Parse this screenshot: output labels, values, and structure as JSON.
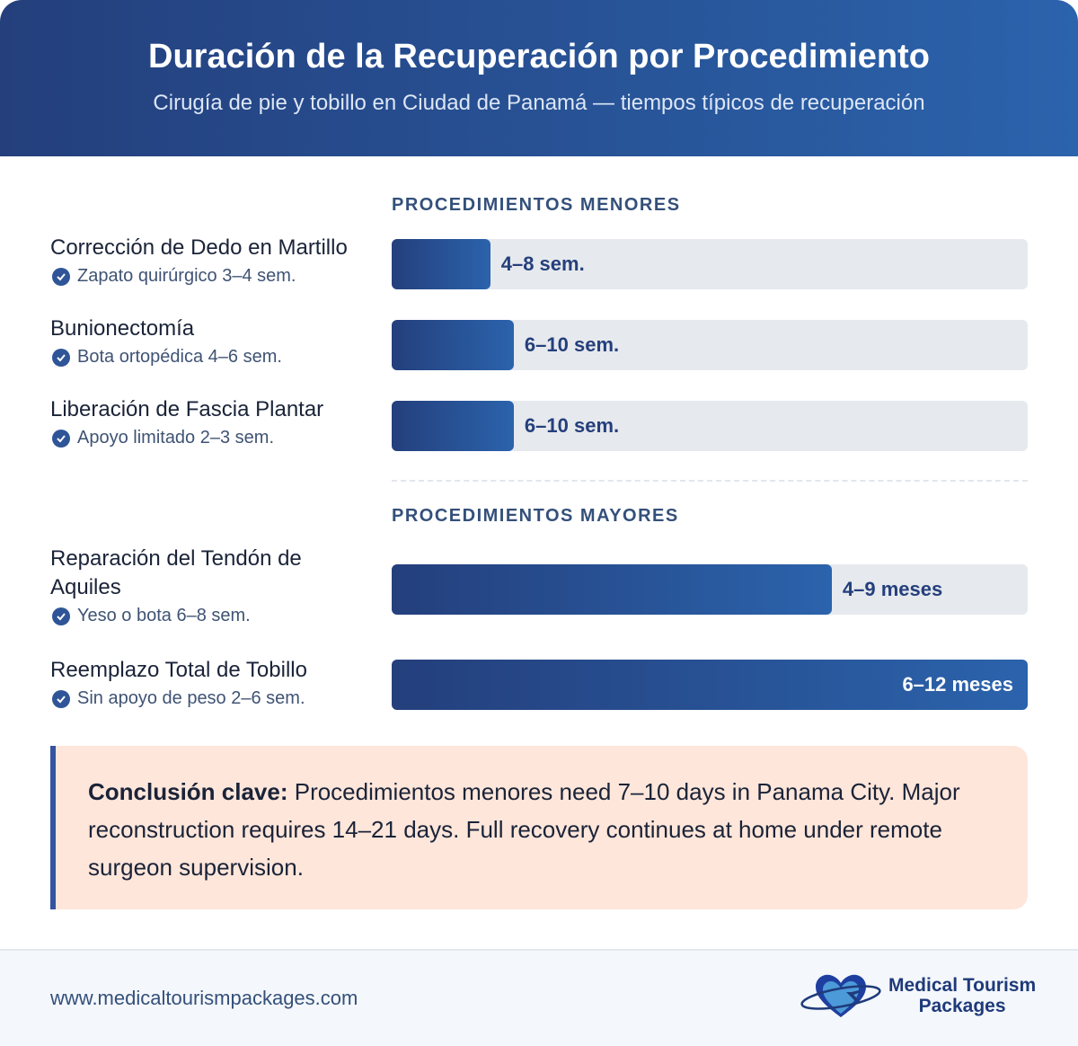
{
  "header": {
    "title": "Duración de la Recuperación por Procedimiento",
    "subtitle": "Cirugía de pie y tobillo en Ciudad de Panamá — tiempos típicos de recuperación"
  },
  "chart_data": {
    "type": "bar",
    "orientation": "horizontal",
    "title": "Duración de la Recuperación por Procedimiento",
    "groups": [
      {
        "title": "PROCEDIMIENTOS MENORES",
        "items": [
          {
            "name": "Corrección de Dedo en Martillo",
            "note": "Zapato quirúrgico 3–4 sem.",
            "label": "4–8 sem.",
            "fill_percent": 15.5
          },
          {
            "name": "Bunionectomía",
            "note": "Bota ortopédica 4–6 sem.",
            "label": "6–10 sem.",
            "fill_percent": 19.2
          },
          {
            "name": "Liberación de Fascia Plantar",
            "note": "Apoyo limitado 2–3 sem.",
            "label": "6–10 sem.",
            "fill_percent": 19.2
          }
        ]
      },
      {
        "title": "PROCEDIMIENTOS MAYORES",
        "items": [
          {
            "name": "Reparación del Tendón de Aquiles",
            "note": "Yeso o bota 6–8 sem.",
            "label": "4–9 meses",
            "fill_percent": 69.2
          },
          {
            "name": "Reemplazo Total de Tobillo",
            "note": "Sin apoyo de peso 2–6 sem.",
            "label": "6–12 meses",
            "fill_percent": 100
          }
        ]
      }
    ],
    "colors": {
      "bar_start": "#243f7c",
      "bar_end": "#2b63ac",
      "track": "#e6e9ed"
    }
  },
  "callout": {
    "bold": "Conclusión clave:",
    "text": " Procedimientos menores need 7–10 days in Panama City. Major reconstruction requires 14–21 days. Full recovery continues at home under remote surgeon supervision."
  },
  "footer": {
    "url": "www.medicaltourismpackages.com",
    "logo_line1": "Medical Tourism",
    "logo_line2": "Packages"
  }
}
